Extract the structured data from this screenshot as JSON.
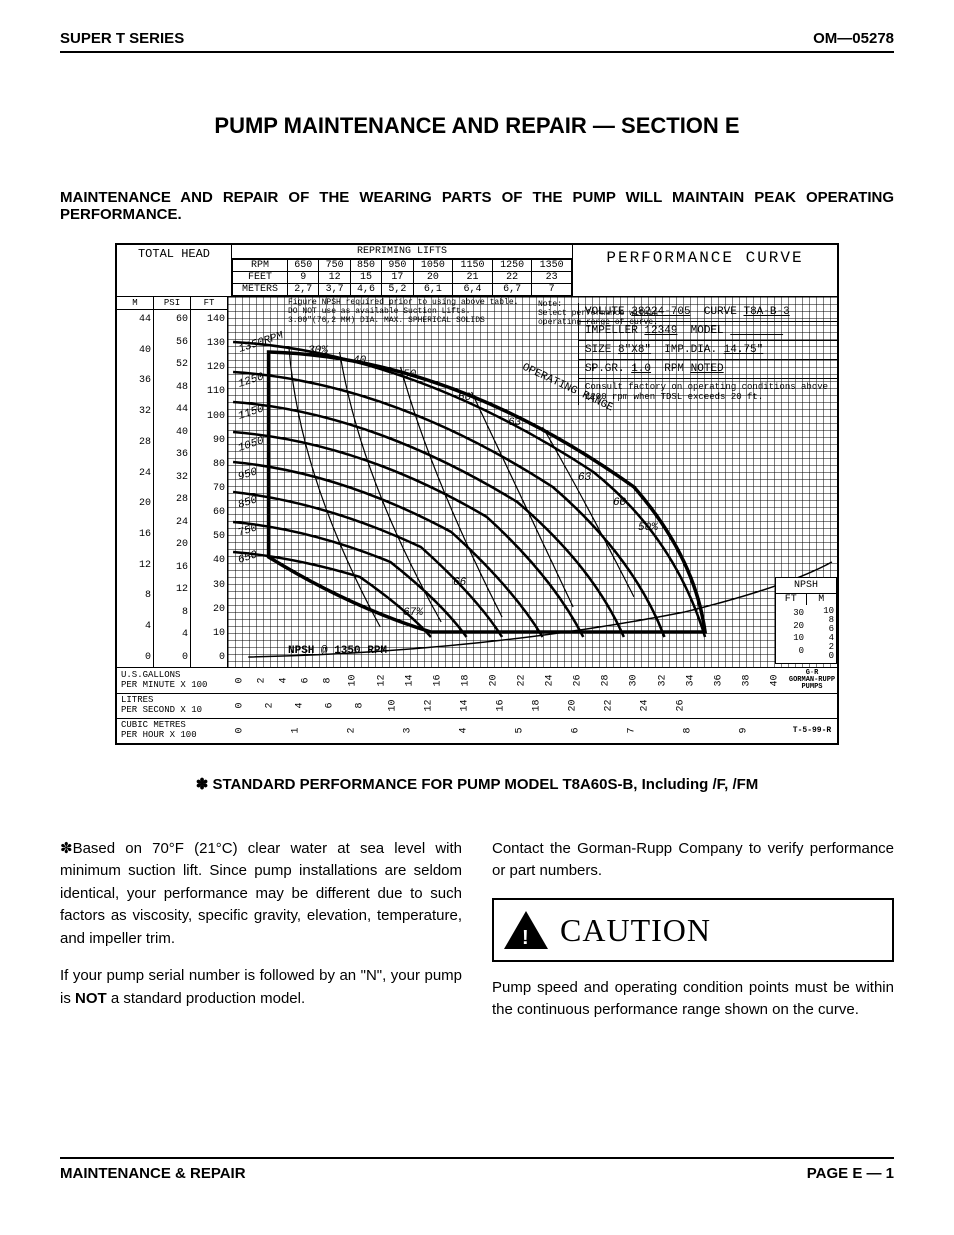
{
  "header": {
    "left": "SUPER T SERIES",
    "right": "OM—05278"
  },
  "section_title": "PUMP MAINTENANCE AND REPAIR — SECTION E",
  "subhead": "MAINTENANCE AND REPAIR OF THE WEARING PARTS OF THE PUMP WILL MAINTAIN PEAK OPERATING PERFORMANCE.",
  "chart": {
    "total_head_label": "TOTAL HEAD",
    "repriming_title": "REPRIMING LIFTS",
    "perf_title": "PERFORMANCE CURVE",
    "repriming": {
      "rpm_label": "RPM",
      "rpm": [
        "650",
        "750",
        "850",
        "950",
        "1050",
        "1150",
        "1250",
        "1350"
      ],
      "feet_label": "FEET",
      "feet": [
        "9",
        "12",
        "15",
        "17",
        "20",
        "21",
        "22",
        "23"
      ],
      "meters_label": "METERS",
      "meters": [
        "2,7",
        "3,7",
        "4,6",
        "5,2",
        "6,1",
        "6,4",
        "6,7",
        "7"
      ]
    },
    "note1": "Figure NPSH required prior to using above table.\nDO NOT use as available Suction Lifts.\n3.00\"(76,2 MM) DIA. MAX. SPHERICAL SOLIDS",
    "note2": "Note:\nSelect performance within\noperating range of curve.",
    "info": {
      "volute_label": "VOLUTE",
      "volute": "38224-705",
      "curve_label": "CURVE",
      "curve": "T8A-B-3",
      "impeller_label": "IMPELLER",
      "impeller": "12349",
      "model_label": "MODEL",
      "size_label": "SIZE",
      "size": "8\"X8\"",
      "imp_dia_label": "IMP.DIA.",
      "imp_dia": "14.75\"",
      "spgr_label": "SP.GR.",
      "spgr": "1.0",
      "rpm_label": "RPM",
      "rpm": "NOTED",
      "consult": "Consult factory on operating conditions above 1200 rpm when TDSL exceeds 20 ft."
    },
    "y_axes": {
      "m_label": "M",
      "m": [
        "44",
        "40",
        "36",
        "32",
        "28",
        "24",
        "20",
        "16",
        "12",
        "8",
        "4",
        "0"
      ],
      "psi_label": "PSI",
      "psi": [
        "60",
        "56",
        "52",
        "48",
        "44",
        "40",
        "36",
        "32",
        "28",
        "24",
        "20",
        "16",
        "12",
        "8",
        "4",
        "0"
      ],
      "ft_label": "FT",
      "ft": [
        "140",
        "130",
        "120",
        "110",
        "100",
        "90",
        "80",
        "70",
        "60",
        "50",
        "40",
        "30",
        "20",
        "10",
        "0"
      ]
    },
    "curves": {
      "rpm_labels": [
        "1350RPM",
        "1250",
        "1150",
        "1050",
        "950",
        "850",
        "750",
        "650"
      ],
      "eff_labels": [
        "30%",
        "40",
        "50",
        "60",
        "63",
        "63",
        "60",
        "50%",
        "66",
        "67%"
      ],
      "operating_range": "OPERATING RANGE",
      "npsh_line": "NPSH @ 1350 RPM",
      "npsh_vals": [
        "7.5",
        "10",
        "12.5",
        "15",
        "17.5",
        "19",
        "25%",
        "30",
        "35",
        "40",
        "43",
        "45",
        "47.5",
        "50",
        "52",
        "55",
        "57",
        "60"
      ]
    },
    "npsh_box": {
      "title": "NPSH",
      "ft_label": "FT",
      "m_label": "M",
      "ft": [
        "30",
        "20",
        "10",
        "0"
      ],
      "m": [
        "10",
        "8",
        "6",
        "4",
        "2",
        "0"
      ]
    },
    "x_axes": {
      "gallons_label": "U.S.GALLONS\nPER MINUTE X 100",
      "gallons": [
        "0",
        "2",
        "4",
        "6",
        "8",
        "10",
        "12",
        "14",
        "16",
        "18",
        "20",
        "22",
        "24",
        "26",
        "28",
        "30",
        "32",
        "34",
        "36",
        "38",
        "40"
      ],
      "litres_label": "LITRES\nPER SECOND X 10",
      "litres": [
        "0",
        "2",
        "4",
        "6",
        "8",
        "10",
        "12",
        "14",
        "16",
        "18",
        "20",
        "22",
        "24",
        "26"
      ],
      "cubic_label": "CUBIC METRES\nPER HOUR X 100",
      "cubic": [
        "0",
        "1",
        "2",
        "3",
        "4",
        "5",
        "6",
        "7",
        "8",
        "9"
      ],
      "rev": "T-5-99-R",
      "logo": "G·R\nGORMAN-RUPP\nPUMPS"
    }
  },
  "std_perf": "✽ STANDARD PERFORMANCE FOR PUMP MODEL T8A60S-B, Including /F, /FM",
  "body": {
    "p1": "✽Based on 70°F (21°C) clear water at sea level with minimum suction lift. Since pump installations are seldom identical, your performance may be different due to such factors as viscosity, specific gravity, elevation, temperature, and impeller trim.",
    "p2a": "If your pump serial number is followed by an \"N\", your pump is ",
    "p2b": "NOT",
    "p2c": " a standard production model.",
    "p3": "Contact the Gorman-Rupp Company to verify performance or part numbers.",
    "caution": "CAUTION",
    "p4": "Pump speed and operating condition points must be within the continuous performance range shown on the curve."
  },
  "footer": {
    "left": "MAINTENANCE & REPAIR",
    "right": "PAGE E — 1"
  }
}
